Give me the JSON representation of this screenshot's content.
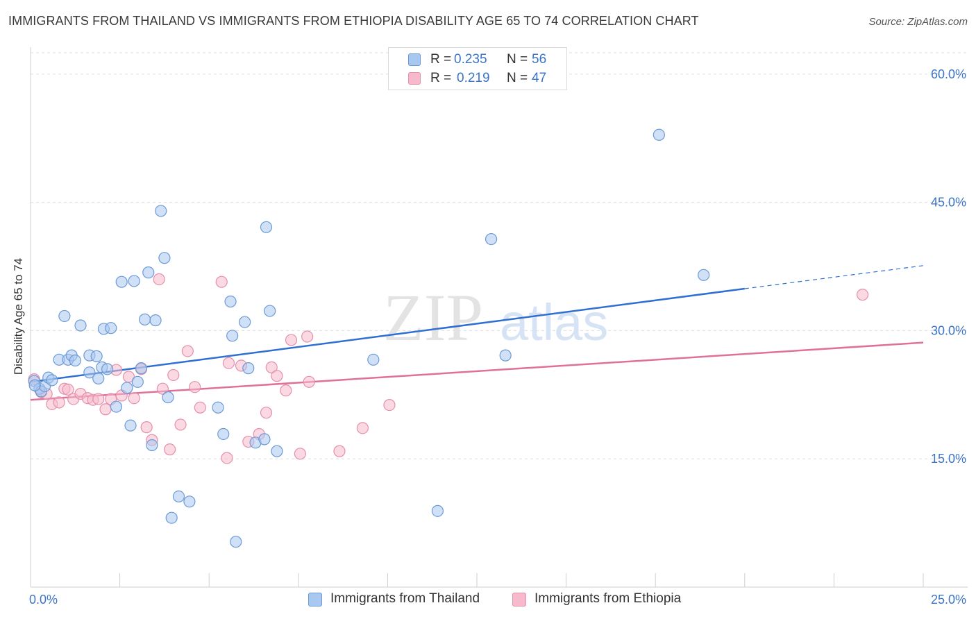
{
  "header": {
    "title": "IMMIGRANTS FROM THAILAND VS IMMIGRANTS FROM ETHIOPIA DISABILITY AGE 65 TO 74 CORRELATION CHART",
    "source": "Source: ZipAtlas.com"
  },
  "watermark": {
    "zip": "ZIP",
    "atlas": "atlas"
  },
  "colors": {
    "thailand_fill": "#a9c8f0",
    "thailand_stroke": "#6b9ad6",
    "thailand_line": "#2f6fd1",
    "ethiopia_fill": "#f7b9cc",
    "ethiopia_stroke": "#e58fab",
    "ethiopia_line": "#e0709a",
    "grid": "#dedede",
    "axis_value": "#3b74c7"
  },
  "stats_legend": {
    "thailand": {
      "r_label": "R =",
      "r_value": "0.235",
      "n_label": "N =",
      "n_value": "56"
    },
    "ethiopia": {
      "r_label": "R =",
      "r_value": "0.219",
      "n_label": "N =",
      "n_value": "47"
    }
  },
  "chart_data": {
    "type": "scatter",
    "title": "IMMIGRANTS FROM THAILAND VS IMMIGRANTS FROM ETHIOPIA DISABILITY AGE 65 TO 74 CORRELATION CHART",
    "xlabel": "",
    "ylabel": "Disability Age 65 to 74",
    "xlim": [
      0,
      25
    ],
    "ylim": [
      0,
      62.5
    ],
    "x_tick_labels": [
      {
        "value": 0,
        "label": "0.0%"
      },
      {
        "value": 25,
        "label": "25.0%"
      }
    ],
    "x_minor_ticks": [
      2.5,
      5,
      7.5,
      10,
      12.5,
      15,
      17.5,
      20,
      22.5,
      25
    ],
    "y_ticks": [
      {
        "value": 15,
        "label": "15.0%"
      },
      {
        "value": 30,
        "label": "30.0%"
      },
      {
        "value": 45,
        "label": "45.0%"
      },
      {
        "value": 60,
        "label": "60.0%"
      }
    ],
    "grid": true,
    "legend_position": "bottom-center",
    "series": [
      {
        "name": "Immigrants from Thailand",
        "key": "thailand",
        "r": 0.235,
        "n": 56,
        "trend": {
          "x_start": 0,
          "y_start": 24.0,
          "x_solid_end": 20.0,
          "y_solid_end": 34.9,
          "x_end": 25,
          "y_end": 37.6
        },
        "points": [
          [
            0.1,
            24.1
          ],
          [
            0.25,
            23.2
          ],
          [
            0.3,
            22.9
          ],
          [
            0.4,
            23.5
          ],
          [
            0.5,
            24.5
          ],
          [
            0.6,
            24.2
          ],
          [
            0.8,
            26.6
          ],
          [
            0.95,
            31.7
          ],
          [
            1.05,
            26.6
          ],
          [
            1.15,
            27.1
          ],
          [
            1.25,
            26.5
          ],
          [
            1.4,
            30.6
          ],
          [
            1.65,
            27.1
          ],
          [
            1.65,
            25.1
          ],
          [
            1.85,
            27.0
          ],
          [
            1.9,
            24.4
          ],
          [
            2.0,
            25.7
          ],
          [
            2.05,
            30.2
          ],
          [
            2.15,
            25.5
          ],
          [
            2.25,
            30.3
          ],
          [
            2.4,
            21.1
          ],
          [
            2.55,
            35.7
          ],
          [
            2.7,
            23.3
          ],
          [
            2.8,
            18.9
          ],
          [
            2.9,
            35.8
          ],
          [
            3.0,
            24.0
          ],
          [
            3.1,
            25.6
          ],
          [
            3.2,
            31.3
          ],
          [
            3.3,
            36.8
          ],
          [
            3.4,
            16.6
          ],
          [
            3.5,
            31.2
          ],
          [
            3.65,
            44.0
          ],
          [
            3.75,
            38.5
          ],
          [
            3.85,
            22.2
          ],
          [
            3.95,
            8.1
          ],
          [
            4.15,
            10.6
          ],
          [
            4.45,
            10.0
          ],
          [
            5.25,
            21.0
          ],
          [
            5.4,
            17.9
          ],
          [
            5.6,
            33.4
          ],
          [
            5.65,
            29.4
          ],
          [
            5.75,
            5.3
          ],
          [
            6.0,
            31.0
          ],
          [
            6.1,
            25.6
          ],
          [
            6.3,
            16.9
          ],
          [
            6.55,
            17.3
          ],
          [
            6.6,
            42.1
          ],
          [
            6.7,
            32.3
          ],
          [
            6.9,
            15.9
          ],
          [
            9.6,
            26.6
          ],
          [
            11.4,
            8.9
          ],
          [
            12.9,
            40.7
          ],
          [
            13.3,
            27.1
          ],
          [
            17.6,
            52.9
          ],
          [
            18.85,
            36.5
          ],
          [
            0.12,
            23.6
          ]
        ]
      },
      {
        "name": "Immigrants from Ethiopia",
        "key": "ethiopia",
        "r": 0.219,
        "n": 47,
        "trend": {
          "x_start": 0,
          "y_start": 21.9,
          "x_end": 25,
          "y_end": 28.6
        },
        "points": [
          [
            0.1,
            24.3
          ],
          [
            0.3,
            22.8
          ],
          [
            0.45,
            22.6
          ],
          [
            0.6,
            21.4
          ],
          [
            0.8,
            21.6
          ],
          [
            0.95,
            23.2
          ],
          [
            1.05,
            23.1
          ],
          [
            1.2,
            22.0
          ],
          [
            1.4,
            22.6
          ],
          [
            1.6,
            22.1
          ],
          [
            1.75,
            21.9
          ],
          [
            1.9,
            22.0
          ],
          [
            2.1,
            20.8
          ],
          [
            2.25,
            22.0
          ],
          [
            2.4,
            25.4
          ],
          [
            2.55,
            22.4
          ],
          [
            2.75,
            24.6
          ],
          [
            2.9,
            22.1
          ],
          [
            3.1,
            25.5
          ],
          [
            3.25,
            18.7
          ],
          [
            3.4,
            17.2
          ],
          [
            3.6,
            36.0
          ],
          [
            3.7,
            23.2
          ],
          [
            3.9,
            16.1
          ],
          [
            4.0,
            24.8
          ],
          [
            4.2,
            19.0
          ],
          [
            4.4,
            27.6
          ],
          [
            4.6,
            23.4
          ],
          [
            4.75,
            21.0
          ],
          [
            5.35,
            35.7
          ],
          [
            5.5,
            15.1
          ],
          [
            5.55,
            26.2
          ],
          [
            5.9,
            25.9
          ],
          [
            6.1,
            17.0
          ],
          [
            6.4,
            17.9
          ],
          [
            6.6,
            20.4
          ],
          [
            6.75,
            25.7
          ],
          [
            6.9,
            24.7
          ],
          [
            7.15,
            23.0
          ],
          [
            7.3,
            28.9
          ],
          [
            7.55,
            15.6
          ],
          [
            7.75,
            29.3
          ],
          [
            7.8,
            24.0
          ],
          [
            8.65,
            15.9
          ],
          [
            9.3,
            18.6
          ],
          [
            10.05,
            21.3
          ],
          [
            23.3,
            34.2
          ]
        ]
      }
    ]
  }
}
